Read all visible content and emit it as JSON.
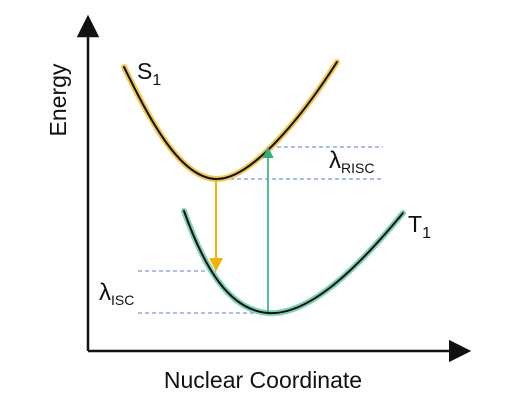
{
  "axes": {
    "x_label": "Nuclear Coordinate",
    "y_label": "Energy"
  },
  "states": {
    "singlet": {
      "symbol": "S",
      "subscript": "1"
    },
    "triplet": {
      "symbol": "T",
      "subscript": "1"
    }
  },
  "reorganization_energies": {
    "risc": {
      "symbol": "λ",
      "subscript": "RISC"
    },
    "isc": {
      "symbol": "λ",
      "subscript": "ISC"
    }
  },
  "colors": {
    "singlet_curve_glow": "#f2c94c",
    "triplet_curve_glow": "#7fd3b6",
    "curve_core": "#111111",
    "isc_arrow": "#f0b400",
    "risc_arrow": "#2fae7a",
    "guide_lines": "#5b86c4",
    "axis": "#111111"
  }
}
